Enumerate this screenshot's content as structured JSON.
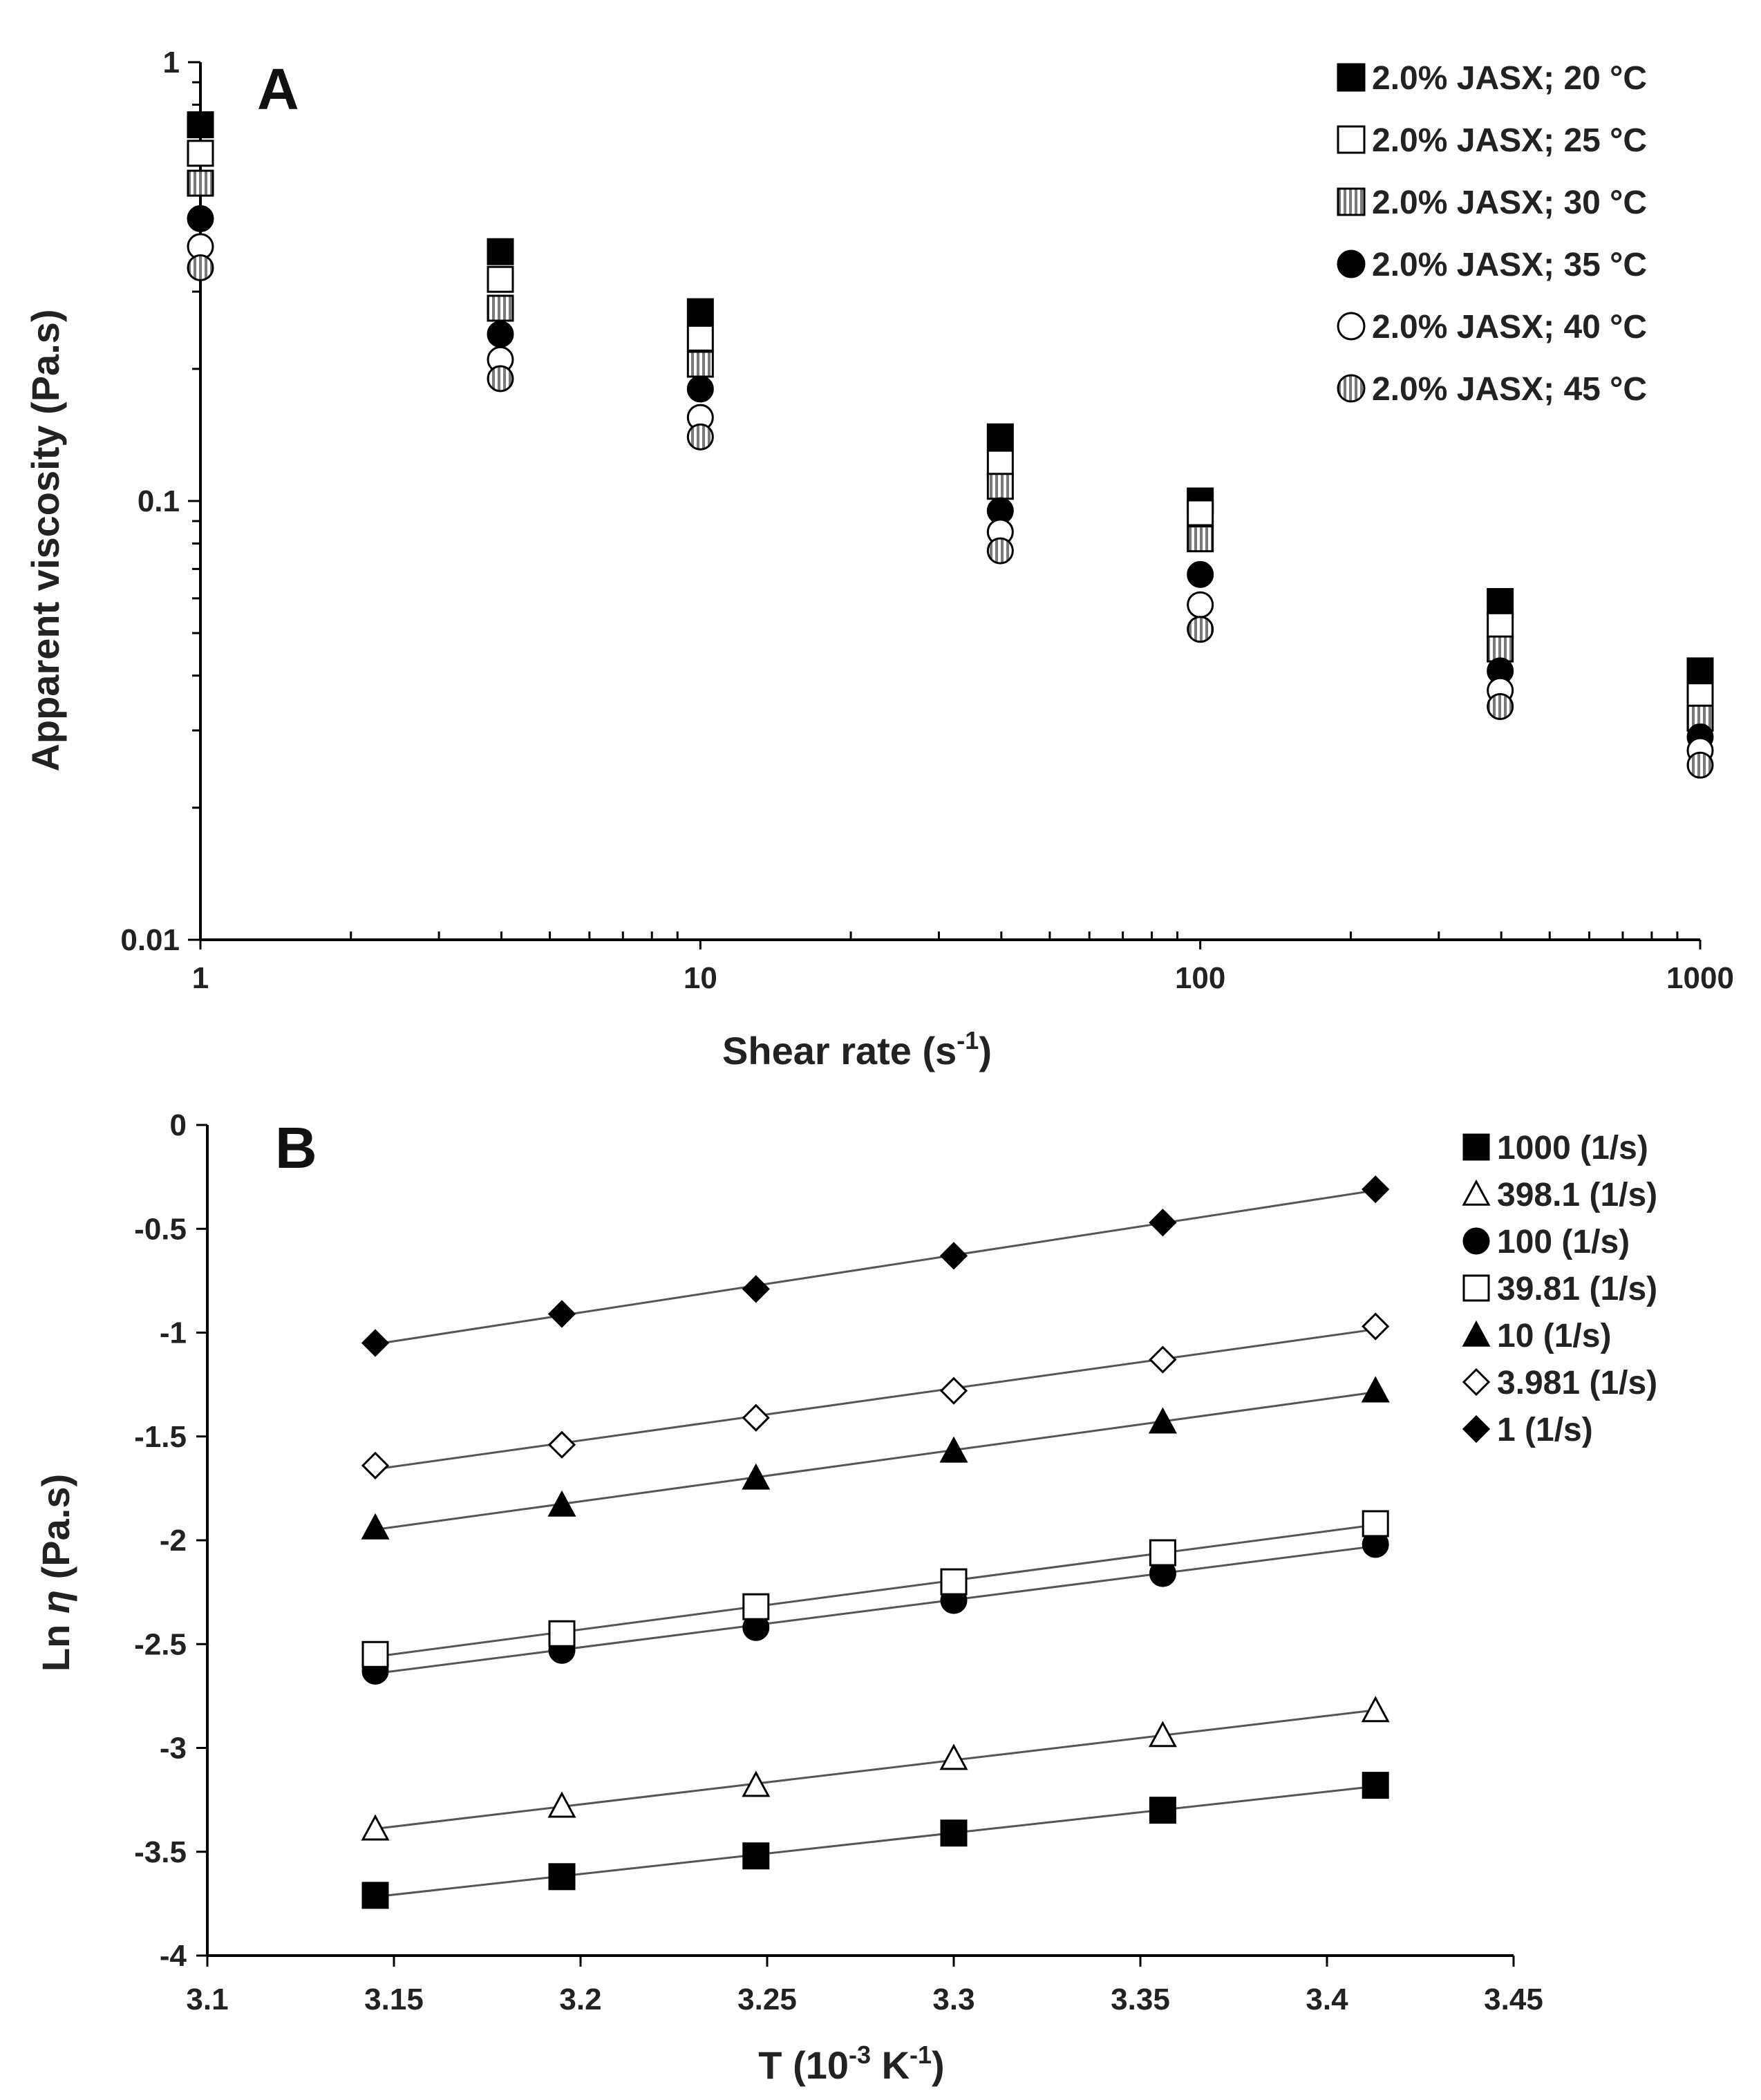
{
  "chart_data": [
    {
      "panel": "A",
      "type": "scatter",
      "xscale": "log",
      "yscale": "log",
      "xlabel": "Shear rate (s",
      "xlabel_sup": "-1",
      "xlabel_end": ")",
      "ylabel": "Apparent viscosity  (Pa.s)",
      "xlim": [
        1,
        1000
      ],
      "ylim": [
        0.01,
        1
      ],
      "xticks": [
        1,
        10,
        100,
        1000
      ],
      "xtick_labels": [
        "1",
        "10",
        "100",
        "1000"
      ],
      "yticks": [
        0.01,
        0.1,
        1
      ],
      "ytick_labels": [
        "0.01",
        "0.1",
        "1"
      ],
      "legend_position": "top-right",
      "x": [
        1,
        3.981,
        10,
        39.81,
        100,
        398.1,
        1000
      ],
      "series": [
        {
          "name": "2.0% JASX; 20 °C",
          "marker": "square-filled",
          "values": [
            0.72,
            0.37,
            0.27,
            0.14,
            0.1,
            0.059,
            0.041
          ]
        },
        {
          "name": "2.0% JASX; 25 °C",
          "marker": "square-open",
          "values": [
            0.62,
            0.32,
            0.235,
            0.122,
            0.094,
            0.052,
            0.036
          ]
        },
        {
          "name": "2.0% JASX; 30 °C",
          "marker": "square-striped",
          "values": [
            0.53,
            0.275,
            0.205,
            0.108,
            0.082,
            0.046,
            0.032
          ]
        },
        {
          "name": "2.0% JASX; 35 °C",
          "marker": "circle-filled",
          "values": [
            0.44,
            0.24,
            0.18,
            0.095,
            0.068,
            0.041,
            0.029
          ]
        },
        {
          "name": "2.0% JASX; 40 °C",
          "marker": "circle-open",
          "values": [
            0.38,
            0.21,
            0.155,
            0.085,
            0.058,
            0.037,
            0.027
          ]
        },
        {
          "name": "2.0% JASX; 45 °C",
          "marker": "circle-striped",
          "values": [
            0.34,
            0.19,
            0.14,
            0.077,
            0.051,
            0.034,
            0.025
          ]
        }
      ]
    },
    {
      "panel": "B",
      "type": "scatter",
      "xlabel": "T (10",
      "xlabel_sup1": "-3",
      "xlabel_mid": " K",
      "xlabel_sup2": "-1",
      "xlabel_end": ")",
      "ylabel_prefix": "Ln ",
      "ylabel_symbol": "η",
      "ylabel_suffix": " (Pa.s)",
      "xlim": [
        3.1,
        3.45
      ],
      "ylim": [
        -4,
        0
      ],
      "xticks": [
        3.1,
        3.15,
        3.2,
        3.25,
        3.3,
        3.35,
        3.4,
        3.45
      ],
      "xtick_labels": [
        "3.1",
        "3.15",
        "3.2",
        "3.25",
        "3.3",
        "3.35",
        "3.4",
        "3.45"
      ],
      "yticks": [
        0,
        -0.5,
        -1,
        -1.5,
        -2,
        -2.5,
        -3,
        -3.5,
        -4
      ],
      "ytick_labels": [
        "0",
        "-0.5",
        "-1",
        "-1.5",
        "-2",
        "-2.5",
        "-3",
        "-3.5",
        "-4"
      ],
      "legend_position": "top-right",
      "trendlines": true,
      "x": [
        3.145,
        3.195,
        3.247,
        3.3,
        3.356,
        3.413
      ],
      "series": [
        {
          "name": "1000 (1/s)",
          "marker": "square-filled",
          "values": [
            -3.71,
            -3.62,
            -3.52,
            -3.41,
            -3.3,
            -3.18
          ]
        },
        {
          "name": "398.1 (1/s)",
          "marker": "triangle-open",
          "values": [
            -3.39,
            -3.28,
            -3.18,
            -3.05,
            -2.94,
            -2.82
          ]
        },
        {
          "name": "100 (1/s)",
          "marker": "circle-filled",
          "values": [
            -2.63,
            -2.53,
            -2.42,
            -2.29,
            -2.16,
            -2.02
          ]
        },
        {
          "name": "39.81 (1/s)",
          "marker": "square-open",
          "values": [
            -2.55,
            -2.45,
            -2.32,
            -2.2,
            -2.06,
            -1.92
          ]
        },
        {
          "name": "10 (1/s)",
          "marker": "triangle-filled",
          "values": [
            -1.94,
            -1.83,
            -1.7,
            -1.57,
            -1.43,
            -1.28
          ]
        },
        {
          "name": "3.981 (1/s)",
          "marker": "diamond-open",
          "values": [
            -1.64,
            -1.54,
            -1.41,
            -1.28,
            -1.13,
            -0.97
          ]
        },
        {
          "name": "1 (1/s)",
          "marker": "diamond-filled",
          "values": [
            -1.05,
            -0.91,
            -0.79,
            -0.63,
            -0.47,
            -0.31
          ]
        }
      ]
    }
  ]
}
